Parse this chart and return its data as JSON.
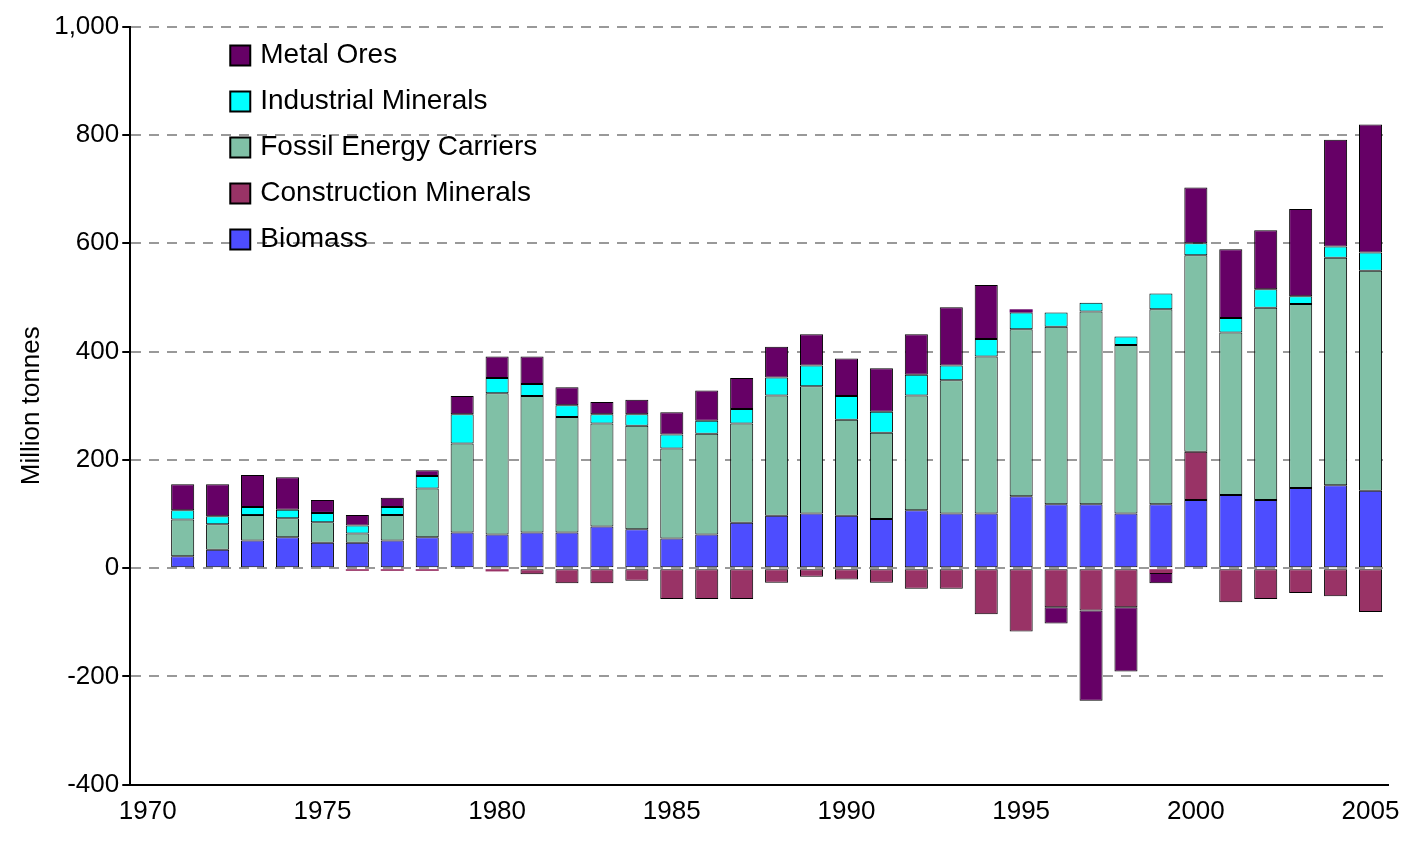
{
  "chart_data": {
    "type": "bar",
    "stacked": true,
    "ylabel": "Million tonnes",
    "categories": [
      "1970",
      null,
      null,
      null,
      null,
      "1975",
      null,
      null,
      null,
      null,
      "1980",
      null,
      null,
      null,
      null,
      "1985",
      null,
      null,
      null,
      null,
      "1990",
      null,
      null,
      null,
      null,
      "1995",
      null,
      null,
      null,
      null,
      "2000",
      null,
      null,
      null,
      null,
      "2005"
    ],
    "series": [
      {
        "name": "Biomass",
        "color": "#4d4dff",
        "values": [
          null,
          22,
          34,
          51,
          57,
          47,
          47,
          51,
          57,
          66,
          62,
          66,
          66,
          77,
          72,
          55,
          62,
          84,
          97,
          101,
          97,
          91,
          107,
          101,
          101,
          133,
          118,
          118,
          101,
          118,
          126,
          135,
          126,
          148,
          153,
          143
        ]
      },
      {
        "name": "Construction Minerals",
        "color": "#993366",
        "values": [
          null,
          null,
          null,
          null,
          null,
          null,
          -5,
          -5,
          -5,
          null,
          -6,
          -11,
          -28,
          -28,
          -23,
          -57,
          -57,
          -57,
          -27,
          -16,
          -21,
          -27,
          -38,
          -38,
          -85,
          -117,
          -72,
          -78,
          -72,
          -9,
          89,
          -63,
          -57,
          -46,
          -52,
          -81
        ]
      },
      {
        "name": "Fossil Energy Carriers",
        "color": "#80c0a6",
        "values": [
          null,
          68,
          47,
          47,
          35,
          38,
          17,
          47,
          90,
          164,
          261,
          252,
          213,
          190,
          191,
          166,
          186,
          183,
          222,
          235,
          177,
          159,
          212,
          246,
          290,
          308,
          328,
          356,
          311,
          360,
          363,
          300,
          355,
          340,
          420,
          406
        ]
      },
      {
        "name": "Industrial Minerals",
        "color": "#00ffff",
        "values": [
          null,
          17,
          15,
          15,
          16,
          17,
          15,
          15,
          23,
          54,
          28,
          22,
          22,
          17,
          21,
          26,
          24,
          27,
          33,
          38,
          44,
          39,
          38,
          27,
          32,
          31,
          26,
          16,
          16,
          29,
          22,
          27,
          34,
          14,
          21,
          34
        ]
      },
      {
        "name": "Metal Ores",
        "color": "#660066",
        "values": [
          null,
          48,
          59,
          59,
          60,
          24,
          19,
          17,
          11,
          34,
          40,
          51,
          33,
          23,
          27,
          41,
          56,
          57,
          57,
          58,
          69,
          80,
          75,
          108,
          100,
          6,
          -30,
          -167,
          -119,
          -19,
          103,
          127,
          109,
          161,
          197,
          236
        ]
      }
    ],
    "ylim": [
      -400,
      1000
    ],
    "yticks": [
      {
        "value": -400,
        "label": "-400"
      },
      {
        "value": -200,
        "label": "-200"
      },
      0,
      200,
      400,
      600,
      800,
      {
        "value": 1000,
        "label": "1,000"
      }
    ],
    "grid": "y",
    "legend": "top left"
  }
}
